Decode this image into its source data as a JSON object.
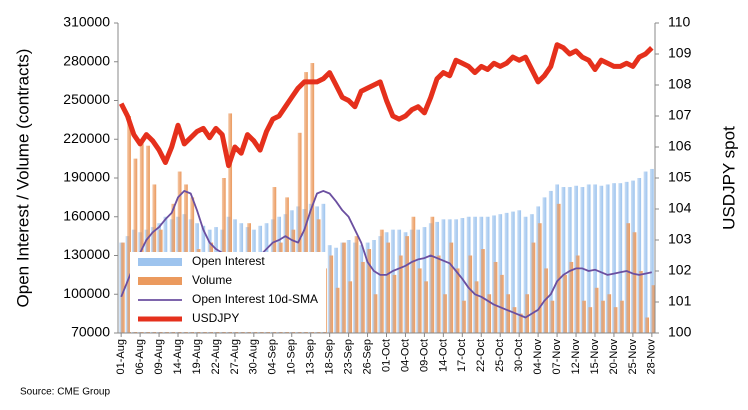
{
  "chart_data": {
    "type": "bar",
    "ylabel": "Open Interest / Volume (contracts)",
    "y2label": "USDJPY spot",
    "source": "Source: CME Group",
    "categories": [
      "01-Aug",
      null,
      null,
      "06-Aug",
      null,
      null,
      "09-Aug",
      null,
      null,
      "14-Aug",
      null,
      null,
      "19-Aug",
      null,
      null,
      "22-Aug",
      null,
      null,
      "27-Aug",
      null,
      null,
      "30-Aug",
      null,
      null,
      "04-Sep",
      null,
      null,
      "10-Sep",
      null,
      null,
      "13-Sep",
      null,
      null,
      "18-Sep",
      null,
      null,
      "23-Sep",
      null,
      null,
      "26-Sep",
      null,
      null,
      "01-Oct",
      null,
      null,
      "04-Oct",
      null,
      null,
      "09-Oct",
      null,
      null,
      "14-Oct",
      null,
      null,
      "17-Oct",
      null,
      null,
      "22-Oct",
      null,
      null,
      "25-Oct",
      null,
      null,
      "30-Oct",
      null,
      null,
      "04-Nov",
      null,
      null,
      "07-Nov",
      null,
      null,
      "12-Nov",
      null,
      null,
      "15-Nov",
      null,
      null,
      "20-Nov",
      null,
      null,
      "25-Nov",
      null,
      null,
      "28-Nov"
    ],
    "series": [
      {
        "name": "Open Interest",
        "type": "bar",
        "color": "#9ec4ee",
        "values": [
          140000,
          145000,
          150000,
          148000,
          150000,
          152000,
          155000,
          160000,
          158000,
          160000,
          162000,
          158000,
          155000,
          153000,
          150000,
          152000,
          150000,
          160000,
          158000,
          155000,
          152000,
          150000,
          153000,
          155000,
          158000,
          160000,
          162000,
          165000,
          168000,
          166000,
          170000,
          168000,
          170000,
          138000,
          136000,
          140000,
          142000,
          140000,
          138000,
          140000,
          142000,
          145000,
          148000,
          150000,
          150000,
          148000,
          150000,
          150000,
          152000,
          155000,
          156000,
          158000,
          158000,
          158000,
          159000,
          160000,
          160000,
          160000,
          160000,
          161000,
          162000,
          163000,
          164000,
          165000,
          160000,
          162000,
          168000,
          175000,
          180000,
          185000,
          183000,
          183000,
          184000,
          183000,
          185000,
          185000,
          184000,
          185000,
          186000,
          186000,
          187000,
          188000,
          190000,
          195000,
          197000
        ]
      },
      {
        "name": "Volume",
        "type": "bar",
        "color": "#eb9a5e",
        "values": [
          140000,
          238000,
          205000,
          220000,
          215000,
          185000,
          150000,
          110000,
          170000,
          195000,
          185000,
          175000,
          135000,
          100000,
          140000,
          120000,
          190000,
          240000,
          130000,
          110000,
          155000,
          120000,
          115000,
          130000,
          183000,
          140000,
          175000,
          150000,
          225000,
          272000,
          279000,
          158000,
          120000,
          130000,
          105000,
          140000,
          110000,
          145000,
          125000,
          135000,
          100000,
          150000,
          140000,
          115000,
          130000,
          145000,
          160000,
          120000,
          110000,
          160000,
          130000,
          100000,
          140000,
          120000,
          95000,
          130000,
          110000,
          135000,
          100000,
          125000,
          115000,
          100000,
          90000,
          85000,
          100000,
          140000,
          155000,
          120000,
          95000,
          170000,
          115000,
          125000,
          130000,
          95000,
          90000,
          105000,
          95000,
          100000,
          90000,
          95000,
          155000,
          148000,
          118000,
          82000,
          107000
        ]
      },
      {
        "name": "Open Interest 10d-SMA",
        "type": "line",
        "color": "#6b4fa0",
        "values": [
          98000,
          110000,
          122000,
          132000,
          142000,
          148000,
          152000,
          158000,
          163000,
          175000,
          180000,
          178000,
          165000,
          150000,
          140000,
          135000,
          132000,
          130000,
          128000,
          126000,
          125000,
          124000,
          130000,
          135000,
          140000,
          142000,
          145000,
          142000,
          140000,
          150000,
          165000,
          178000,
          180000,
          178000,
          172000,
          165000,
          160000,
          150000,
          140000,
          125000,
          118000,
          115000,
          115000,
          118000,
          120000,
          122000,
          125000,
          127000,
          128000,
          130000,
          128000,
          126000,
          124000,
          118000,
          112000,
          105000,
          100000,
          98000,
          95000,
          92000,
          90000,
          88000,
          86000,
          84000,
          82000,
          85000,
          88000,
          95000,
          100000,
          110000,
          115000,
          118000,
          120000,
          120000,
          118000,
          119000,
          117000,
          115000,
          116000,
          117000,
          118000,
          116000,
          115000,
          116000,
          117000
        ]
      },
      {
        "name": "USDJPY",
        "type": "line",
        "axis": "y2",
        "color": "#e5301c",
        "values": [
          107.4,
          107.0,
          106.4,
          106.1,
          106.4,
          106.2,
          105.9,
          105.5,
          106.0,
          106.7,
          106.1,
          106.3,
          106.5,
          106.6,
          106.3,
          106.6,
          106.4,
          105.4,
          106.0,
          105.8,
          106.4,
          106.2,
          105.9,
          106.5,
          106.9,
          107.0,
          107.3,
          107.6,
          107.9,
          108.1,
          108.1,
          108.1,
          108.2,
          108.4,
          108.0,
          107.6,
          107.5,
          107.3,
          107.8,
          107.9,
          108.0,
          108.1,
          107.5,
          107.0,
          106.9,
          107.0,
          107.2,
          107.3,
          107.1,
          107.6,
          108.2,
          108.4,
          108.3,
          108.8,
          108.7,
          108.6,
          108.4,
          108.6,
          108.5,
          108.7,
          108.6,
          108.7,
          108.9,
          108.8,
          108.9,
          108.5,
          108.1,
          108.3,
          108.6,
          109.3,
          109.2,
          109.0,
          109.1,
          108.9,
          108.8,
          108.5,
          108.8,
          108.7,
          108.6,
          108.6,
          108.7,
          108.6,
          108.9,
          109.0,
          109.2
        ]
      }
    ],
    "ylim": [
      70000,
      310000
    ],
    "yticks": [
      70000,
      100000,
      130000,
      160000,
      190000,
      220000,
      250000,
      280000,
      310000
    ],
    "y2lim": [
      100,
      110
    ],
    "y2ticks": [
      100,
      101,
      102,
      103,
      104,
      105,
      106,
      107,
      108,
      109,
      110
    ]
  }
}
